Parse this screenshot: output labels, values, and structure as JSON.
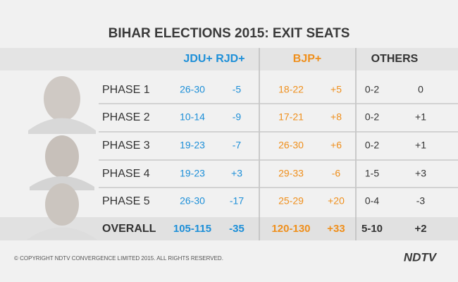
{
  "title": "BIHAR ELECTIONS 2015: EXIT SEATS",
  "table": {
    "headers": [
      "JDU+ RJD+",
      "BJP+",
      "OTHERS"
    ],
    "rows": [
      [
        "PHASE 1",
        "26-30",
        "-5",
        "18-22",
        "+5",
        "0-2",
        "0"
      ],
      [
        "PHASE 2",
        "10-14",
        "-9",
        "17-21",
        "+8",
        "0-2",
        "+1"
      ],
      [
        "PHASE 3",
        "19-23",
        "-7",
        "26-30",
        "+6",
        "0-2",
        "+1"
      ],
      [
        "PHASE 4",
        "19-23",
        "+3",
        "29-33",
        "-6",
        "1-5",
        "+3"
      ],
      [
        "PHASE 5",
        "26-30",
        "-17",
        "25-29",
        "+20",
        "0-4",
        "-3"
      ]
    ],
    "overall": [
      "OVERALL",
      "105-115",
      "-35",
      "120-130",
      "+33",
      "5-10",
      "+2"
    ]
  },
  "footer": {
    "copyright": "© COPYRIGHT NDTV CONVERGENCE LIMITED 2015. ALL RIGHTS RESERVED.",
    "logo": "NDTV"
  }
}
